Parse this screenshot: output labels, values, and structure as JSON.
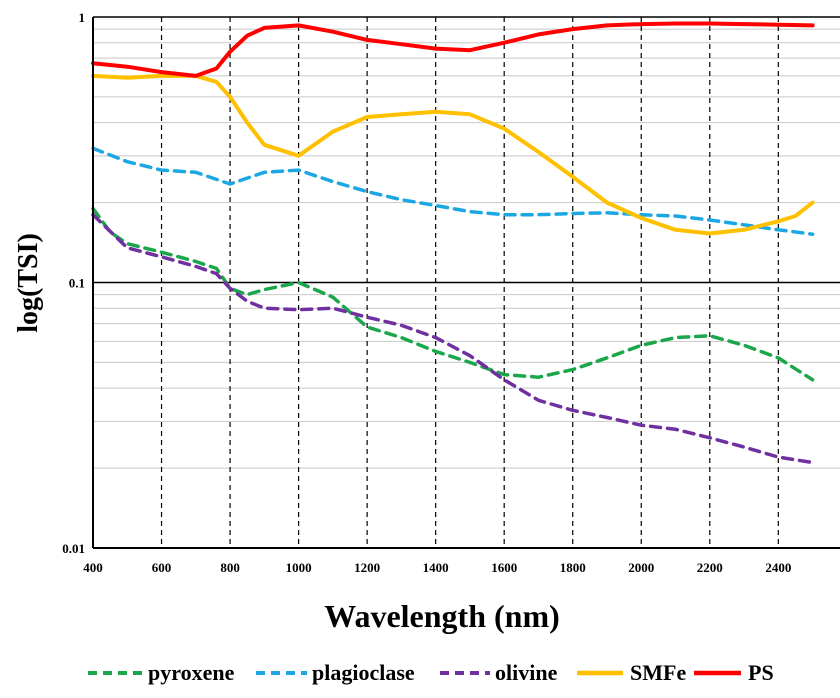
{
  "chart_data": {
    "type": "line",
    "title": "",
    "xlabel": "Wavelength (nm)",
    "ylabel": "log(TSI)",
    "yscale": "log",
    "xlim": [
      400,
      2580
    ],
    "ylim": [
      0.01,
      1
    ],
    "x_ticks": [
      400,
      600,
      800,
      1000,
      1200,
      1400,
      1600,
      1800,
      2000,
      2200,
      2400
    ],
    "x_tick_labels": [
      "400",
      "600",
      "800",
      "1000",
      "1200",
      "1400",
      "1600",
      "1800",
      "2000",
      "2200",
      "2400"
    ],
    "y_ticks": [
      0.01,
      0.1,
      1
    ],
    "y_tick_labels": [
      "0.01",
      "0.1",
      "1"
    ],
    "grid": "vertical dashed at x ticks; solid horizontal at decades with gray minor lines",
    "legend_position": "bottom",
    "series": [
      {
        "name": "pyroxene",
        "color": "#1aa64a",
        "dash": "dashed",
        "points": [
          [
            400,
            0.19
          ],
          [
            450,
            0.155
          ],
          [
            500,
            0.14
          ],
          [
            600,
            0.13
          ],
          [
            700,
            0.12
          ],
          [
            760,
            0.113
          ],
          [
            800,
            0.095
          ],
          [
            850,
            0.09
          ],
          [
            900,
            0.094
          ],
          [
            1000,
            0.1
          ],
          [
            1100,
            0.088
          ],
          [
            1200,
            0.068
          ],
          [
            1300,
            0.062
          ],
          [
            1400,
            0.055
          ],
          [
            1500,
            0.05
          ],
          [
            1600,
            0.045
          ],
          [
            1700,
            0.044
          ],
          [
            1800,
            0.047
          ],
          [
            1900,
            0.052
          ],
          [
            2000,
            0.058
          ],
          [
            2100,
            0.062
          ],
          [
            2200,
            0.063
          ],
          [
            2300,
            0.058
          ],
          [
            2400,
            0.052
          ],
          [
            2500,
            0.043
          ]
        ]
      },
      {
        "name": "plagioclase",
        "color": "#1aa7e4",
        "dash": "dashed",
        "points": [
          [
            400,
            0.32
          ],
          [
            500,
            0.285
          ],
          [
            600,
            0.265
          ],
          [
            700,
            0.26
          ],
          [
            800,
            0.235
          ],
          [
            900,
            0.26
          ],
          [
            1000,
            0.265
          ],
          [
            1100,
            0.24
          ],
          [
            1200,
            0.22
          ],
          [
            1300,
            0.205
          ],
          [
            1400,
            0.195
          ],
          [
            1500,
            0.185
          ],
          [
            1600,
            0.18
          ],
          [
            1700,
            0.18
          ],
          [
            1800,
            0.182
          ],
          [
            1900,
            0.183
          ],
          [
            2000,
            0.18
          ],
          [
            2100,
            0.178
          ],
          [
            2200,
            0.172
          ],
          [
            2300,
            0.165
          ],
          [
            2400,
            0.158
          ],
          [
            2500,
            0.152
          ]
        ]
      },
      {
        "name": "olivine",
        "color": "#7030a0",
        "dash": "dashed",
        "points": [
          [
            400,
            0.18
          ],
          [
            500,
            0.135
          ],
          [
            600,
            0.125
          ],
          [
            700,
            0.115
          ],
          [
            760,
            0.108
          ],
          [
            800,
            0.095
          ],
          [
            850,
            0.085
          ],
          [
            900,
            0.08
          ],
          [
            1000,
            0.079
          ],
          [
            1100,
            0.08
          ],
          [
            1200,
            0.074
          ],
          [
            1300,
            0.069
          ],
          [
            1400,
            0.062
          ],
          [
            1500,
            0.053
          ],
          [
            1600,
            0.043
          ],
          [
            1700,
            0.036
          ],
          [
            1800,
            0.033
          ],
          [
            1900,
            0.031
          ],
          [
            2000,
            0.029
          ],
          [
            2100,
            0.028
          ],
          [
            2200,
            0.026
          ],
          [
            2300,
            0.024
          ],
          [
            2400,
            0.022
          ],
          [
            2500,
            0.021
          ]
        ]
      },
      {
        "name": "SMFe",
        "color": "#ffc000",
        "dash": "solid",
        "points": [
          [
            400,
            0.6
          ],
          [
            500,
            0.59
          ],
          [
            600,
            0.6
          ],
          [
            700,
            0.6
          ],
          [
            760,
            0.57
          ],
          [
            800,
            0.5
          ],
          [
            850,
            0.4
          ],
          [
            900,
            0.33
          ],
          [
            1000,
            0.3
          ],
          [
            1100,
            0.37
          ],
          [
            1200,
            0.42
          ],
          [
            1300,
            0.43
          ],
          [
            1400,
            0.44
          ],
          [
            1500,
            0.43
          ],
          [
            1600,
            0.38
          ],
          [
            1700,
            0.31
          ],
          [
            1800,
            0.25
          ],
          [
            1900,
            0.2
          ],
          [
            2000,
            0.175
          ],
          [
            2100,
            0.158
          ],
          [
            2200,
            0.153
          ],
          [
            2300,
            0.158
          ],
          [
            2400,
            0.17
          ],
          [
            2450,
            0.178
          ],
          [
            2500,
            0.2
          ]
        ]
      },
      {
        "name": "PS",
        "color": "#ff0000",
        "dash": "solid",
        "points": [
          [
            400,
            0.67
          ],
          [
            500,
            0.65
          ],
          [
            600,
            0.62
          ],
          [
            700,
            0.6
          ],
          [
            760,
            0.64
          ],
          [
            800,
            0.74
          ],
          [
            850,
            0.85
          ],
          [
            900,
            0.91
          ],
          [
            1000,
            0.93
          ],
          [
            1100,
            0.88
          ],
          [
            1200,
            0.82
          ],
          [
            1300,
            0.79
          ],
          [
            1400,
            0.76
          ],
          [
            1500,
            0.75
          ],
          [
            1600,
            0.8
          ],
          [
            1700,
            0.86
          ],
          [
            1800,
            0.9
          ],
          [
            1900,
            0.93
          ],
          [
            2000,
            0.94
          ],
          [
            2100,
            0.945
          ],
          [
            2200,
            0.945
          ],
          [
            2300,
            0.94
          ],
          [
            2400,
            0.935
          ],
          [
            2500,
            0.93
          ]
        ]
      }
    ]
  }
}
